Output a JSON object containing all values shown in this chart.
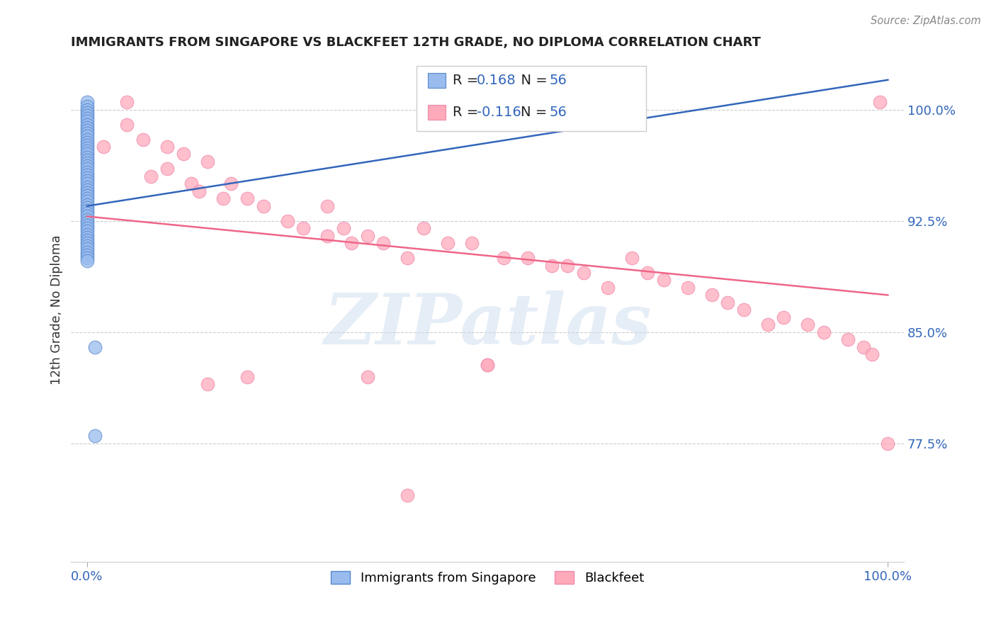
{
  "title": "IMMIGRANTS FROM SINGAPORE VS BLACKFEET 12TH GRADE, NO DIPLOMA CORRELATION CHART",
  "source": "Source: ZipAtlas.com",
  "ylabel": "12th Grade, No Diploma",
  "ytick_labels": [
    "100.0%",
    "92.5%",
    "85.0%",
    "77.5%"
  ],
  "ytick_values": [
    1.0,
    0.925,
    0.85,
    0.775
  ],
  "legend_label1": "Immigrants from Singapore",
  "legend_label2": "Blackfeet",
  "R1": 0.168,
  "N1": 56,
  "R2": -0.116,
  "N2": 56,
  "color_blue_fill": "#99BBEE",
  "color_blue_edge": "#5588CC",
  "color_pink_fill": "#FFAABB",
  "color_pink_edge": "#EE88AA",
  "color_blue_line": "#3366BB",
  "color_pink_line": "#EE6688",
  "background_color": "#FFFFFF",
  "xlim": [
    -0.02,
    1.02
  ],
  "ylim": [
    0.695,
    1.035
  ],
  "blue_x": [
    0.0,
    0.0,
    0.0,
    0.0,
    0.0,
    0.0,
    0.0,
    0.0,
    0.0,
    0.0,
    0.0,
    0.0,
    0.0,
    0.0,
    0.0,
    0.0,
    0.0,
    0.0,
    0.0,
    0.0,
    0.0,
    0.0,
    0.0,
    0.0,
    0.0,
    0.0,
    0.0,
    0.0,
    0.0,
    0.0,
    0.0,
    0.0,
    0.0,
    0.0,
    0.0,
    0.0,
    0.0,
    0.0,
    0.0,
    0.0,
    0.0,
    0.0,
    0.0,
    0.0,
    0.0,
    0.0,
    0.0,
    0.0,
    0.0,
    0.0,
    0.0,
    0.0,
    0.0,
    0.0,
    0.01,
    0.01
  ],
  "blue_y": [
    1.005,
    1.002,
    1.0,
    0.998,
    0.996,
    0.994,
    0.992,
    0.99,
    0.988,
    0.986,
    0.984,
    0.982,
    0.98,
    0.978,
    0.976,
    0.974,
    0.972,
    0.97,
    0.968,
    0.966,
    0.964,
    0.962,
    0.96,
    0.958,
    0.956,
    0.954,
    0.952,
    0.95,
    0.948,
    0.946,
    0.944,
    0.942,
    0.94,
    0.938,
    0.936,
    0.934,
    0.932,
    0.93,
    0.928,
    0.926,
    0.924,
    0.922,
    0.92,
    0.918,
    0.916,
    0.914,
    0.912,
    0.91,
    0.908,
    0.906,
    0.904,
    0.902,
    0.9,
    0.898,
    0.84,
    0.78
  ],
  "pink_x": [
    0.0,
    0.02,
    0.05,
    0.05,
    0.07,
    0.08,
    0.1,
    0.1,
    0.12,
    0.13,
    0.14,
    0.15,
    0.17,
    0.18,
    0.2,
    0.22,
    0.25,
    0.27,
    0.3,
    0.3,
    0.32,
    0.33,
    0.35,
    0.37,
    0.4,
    0.42,
    0.45,
    0.48,
    0.5,
    0.52,
    0.55,
    0.58,
    0.6,
    0.62,
    0.65,
    0.68,
    0.7,
    0.72,
    0.75,
    0.78,
    0.8,
    0.82,
    0.85,
    0.87,
    0.9,
    0.92,
    0.95,
    0.97,
    0.98,
    0.99,
    0.2,
    0.35,
    0.5,
    0.15,
    0.4,
    1.0
  ],
  "pink_y": [
    0.97,
    0.975,
    1.005,
    0.99,
    0.98,
    0.955,
    0.975,
    0.96,
    0.97,
    0.95,
    0.945,
    0.965,
    0.94,
    0.95,
    0.94,
    0.935,
    0.925,
    0.92,
    0.935,
    0.915,
    0.92,
    0.91,
    0.915,
    0.91,
    0.9,
    0.92,
    0.91,
    0.91,
    0.828,
    0.9,
    0.9,
    0.895,
    0.895,
    0.89,
    0.88,
    0.9,
    0.89,
    0.885,
    0.88,
    0.875,
    0.87,
    0.865,
    0.855,
    0.86,
    0.855,
    0.85,
    0.845,
    0.84,
    0.835,
    1.005,
    0.82,
    0.82,
    0.828,
    0.815,
    0.74,
    0.775
  ],
  "blue_trend_x": [
    0.0,
    1.0
  ],
  "blue_trend_y": [
    0.935,
    1.02
  ],
  "pink_trend_x": [
    0.0,
    1.0
  ],
  "pink_trend_y": [
    0.928,
    0.875
  ],
  "watermark_text": "ZIPatlas",
  "watermark_color": "#CCDDEF",
  "watermark_alpha": 0.5
}
